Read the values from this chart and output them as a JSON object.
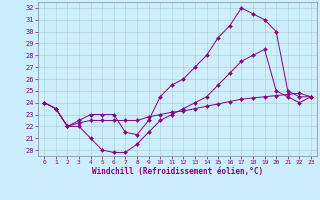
{
  "xlabel": "Windchill (Refroidissement éolien,°C)",
  "bg_color": "#cceeff",
  "grid_color": "#aaccbb",
  "line_color": "#880088",
  "xlim": [
    -0.5,
    23.5
  ],
  "ylim": [
    19.5,
    32.5
  ],
  "yticks": [
    20,
    21,
    22,
    23,
    24,
    25,
    26,
    27,
    28,
    29,
    30,
    31,
    32
  ],
  "xticks": [
    0,
    1,
    2,
    3,
    4,
    5,
    6,
    7,
    8,
    9,
    10,
    11,
    12,
    13,
    14,
    15,
    16,
    17,
    18,
    19,
    20,
    21,
    22,
    23
  ],
  "series": [
    {
      "x": [
        0,
        1,
        2,
        3,
        4,
        5,
        6,
        7,
        8,
        9,
        10,
        11,
        12,
        13,
        14,
        15,
        16,
        17,
        18,
        19,
        20,
        21,
        22,
        23
      ],
      "y": [
        24.0,
        23.5,
        22.0,
        22.3,
        22.5,
        22.5,
        22.5,
        22.5,
        22.5,
        22.8,
        23.0,
        23.2,
        23.3,
        23.5,
        23.7,
        23.9,
        24.1,
        24.3,
        24.4,
        24.5,
        24.6,
        24.7,
        24.8,
        24.5
      ]
    },
    {
      "x": [
        0,
        1,
        2,
        3,
        4,
        5,
        6,
        7,
        8,
        9,
        10,
        11,
        12,
        13,
        14,
        15,
        16,
        17,
        18,
        19,
        20,
        21,
        22,
        23
      ],
      "y": [
        24.0,
        23.5,
        22.0,
        22.0,
        21.0,
        20.0,
        19.8,
        19.8,
        20.5,
        21.5,
        22.5,
        23.0,
        23.5,
        24.0,
        24.5,
        25.5,
        26.5,
        27.5,
        28.0,
        28.5,
        25.0,
        24.5,
        24.0,
        24.5
      ]
    },
    {
      "x": [
        0,
        1,
        2,
        3,
        4,
        5,
        6,
        7,
        8,
        9,
        10,
        11,
        12,
        13,
        14,
        15,
        16,
        17,
        18,
        19,
        20,
        21,
        22,
        23
      ],
      "y": [
        24.0,
        23.5,
        22.0,
        22.5,
        23.0,
        23.0,
        23.0,
        21.5,
        21.3,
        22.5,
        24.5,
        25.5,
        26.0,
        27.0,
        28.0,
        29.5,
        30.5,
        32.0,
        31.5,
        31.0,
        30.0,
        25.0,
        24.5,
        24.5
      ]
    }
  ]
}
